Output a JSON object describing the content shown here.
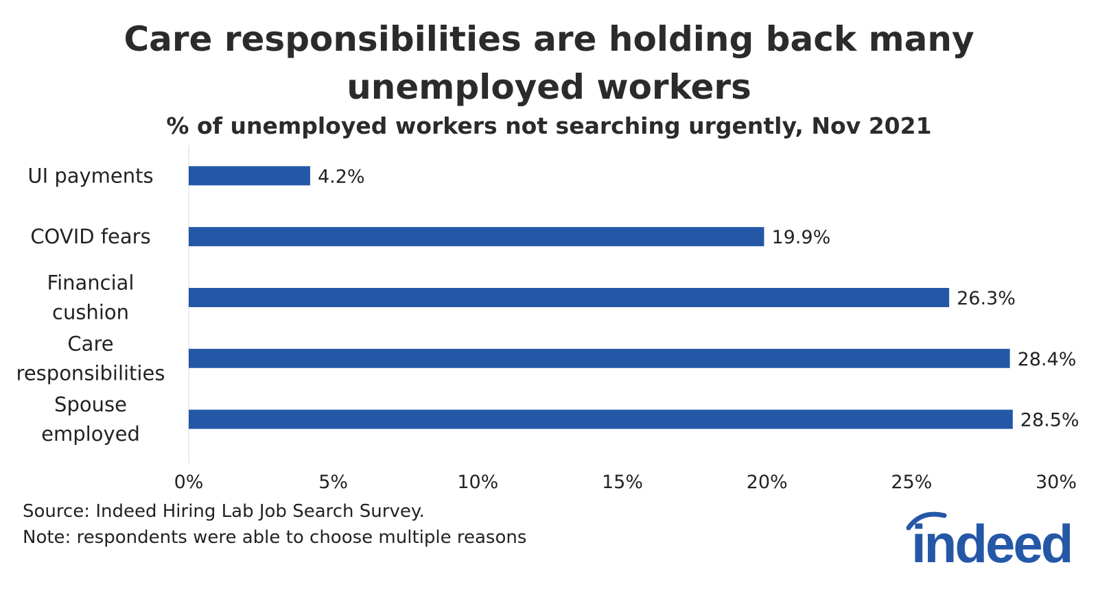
{
  "chart_data": {
    "type": "bar",
    "orientation": "horizontal",
    "title": "Care responsibilities are holding back many unemployed workers",
    "subtitle": "% of unemployed workers not searching urgently, Nov 2021",
    "categories": [
      "UI payments",
      "COVID fears",
      "Financial cushion",
      "Care responsibilities",
      "Spouse employed"
    ],
    "category_lines": [
      [
        "UI payments"
      ],
      [
        "COVID fears"
      ],
      [
        "Financial",
        "cushion"
      ],
      [
        "Care",
        "responsibilities"
      ],
      [
        "Spouse",
        "employed"
      ]
    ],
    "values": [
      4.2,
      19.9,
      26.3,
      28.4,
      28.5
    ],
    "value_labels": [
      "4.2%",
      "19.9%",
      "26.3%",
      "28.4%",
      "28.5%"
    ],
    "xlim": [
      0,
      30
    ],
    "xticks": [
      0,
      5,
      10,
      15,
      20,
      25,
      30
    ],
    "xtick_labels": [
      "0%",
      "5%",
      "10%",
      "15%",
      "20%",
      "25%",
      "30%"
    ],
    "xlabel": "",
    "ylabel": "",
    "grid": false,
    "bar_color": "#2557a7"
  },
  "footer": {
    "source": "Source: Indeed Hiring Lab Job Search Survey.",
    "note": "Note: respondents were able to choose multiple reasons"
  },
  "logo": {
    "text": "indeed",
    "color": "#2557a7"
  }
}
